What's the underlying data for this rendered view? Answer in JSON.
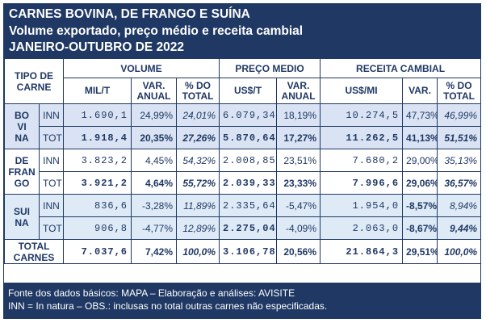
{
  "header": {
    "line1": "CARNES BOVINA, DE FRANGO E SUÍNA",
    "line2": "Volume exportado, preço médio e receita cambial",
    "line3": "JANEIRO-OUTUBRO DE 2022"
  },
  "table": {
    "tipo_label_1": "TIPO DE",
    "tipo_label_2": "CARNE",
    "groups": {
      "volume": "VOLUME",
      "preco": "PREÇO MEDIO",
      "receita": "RECEITA CAMBIAL"
    },
    "subheaders": {
      "mil_t": "MIL/T",
      "var_anual_1": "VAR.",
      "var_anual_2": "ANUAL",
      "pct_do": "% DO",
      "pct_total": "TOTAL",
      "us_t": "US$/T",
      "var_anual2_1": "VAR.",
      "var_anual2_2": "ANUAL",
      "us_mi": "US$/MI",
      "var": "VAR.",
      "pct_do2": "% DO",
      "pct_total2": "TOTAL"
    },
    "rows": [
      {
        "carne_a": "BO",
        "carne_b": "VI",
        "carne_c": "NA",
        "tipo": "INN",
        "mil_t": "1.690,1",
        "vol_var": "24,99%",
        "vol_pct": "24,01%",
        "preco": "6.079,34",
        "preco_var": "18,19%",
        "receita": "10.274,5",
        "rec_var": "47,73%",
        "rec_pct": "46,99%"
      },
      {
        "tipo": "TOT",
        "mil_t": "1.918,4",
        "vol_var": "20,35%",
        "vol_pct": "27,26%",
        "preco": "5.870,64",
        "preco_var": "17,27%",
        "receita": "11.262,5",
        "rec_var": "41,13%",
        "rec_pct": "51,51%"
      },
      {
        "carne_a": "DE",
        "carne_b": "FRAN",
        "carne_c": "GO",
        "tipo": "INN",
        "mil_t": "3.823,2",
        "vol_var": "4,45%",
        "vol_pct": "54,32%",
        "preco": "2.008,85",
        "preco_var": "23,51%",
        "receita": "7.680,2",
        "rec_var": "29,00%",
        "rec_pct": "35,13%"
      },
      {
        "tipo": "TOT",
        "mil_t": "3.921,2",
        "vol_var": "4,64%",
        "vol_pct": "55,72%",
        "preco": "2.039,33",
        "preco_var": "23,33%",
        "receita": "7.996,6",
        "rec_var": "29,06%",
        "rec_pct": "36,57%"
      },
      {
        "carne_a": "SUI",
        "carne_b": "NA",
        "tipo": "INN",
        "mil_t": "836,6",
        "vol_var": "-3,28%",
        "vol_pct": "11,89%",
        "preco": "2.335,64",
        "preco_var": "-5,47%",
        "receita": "1.954,0",
        "rec_var": "-8,57%",
        "rec_pct": "8,94%"
      },
      {
        "tipo": "TOT",
        "mil_t": "906,8",
        "vol_var": "-4,77%",
        "vol_pct": "12,89%",
        "preco": "2.275,04",
        "preco_var": "-4,09%",
        "receita": "2.063,0",
        "rec_var": "-8,67%",
        "rec_pct": "9,44%"
      }
    ],
    "total": {
      "label_1": "TOTAL",
      "label_2": "CARNES",
      "mil_t": "7.037,6",
      "vol_var": "7,42%",
      "vol_pct": "100,0%",
      "preco": "3.106,78",
      "preco_var": "20,56%",
      "receita": "21.864,3",
      "rec_var": "29,51%",
      "rec_pct": "100,0%"
    }
  },
  "footer": {
    "line1": "Fonte dos dados básicos: MAPA – Elaboração e análises: AVISITE",
    "line2": "INN = In natura – OBS.: inclusas no total outras carnes não especificadas."
  },
  "colors": {
    "navy": "#1f3864",
    "negative": "#e00000",
    "row_bovina": "#dae3f3",
    "row_suina": "#deebf7"
  }
}
